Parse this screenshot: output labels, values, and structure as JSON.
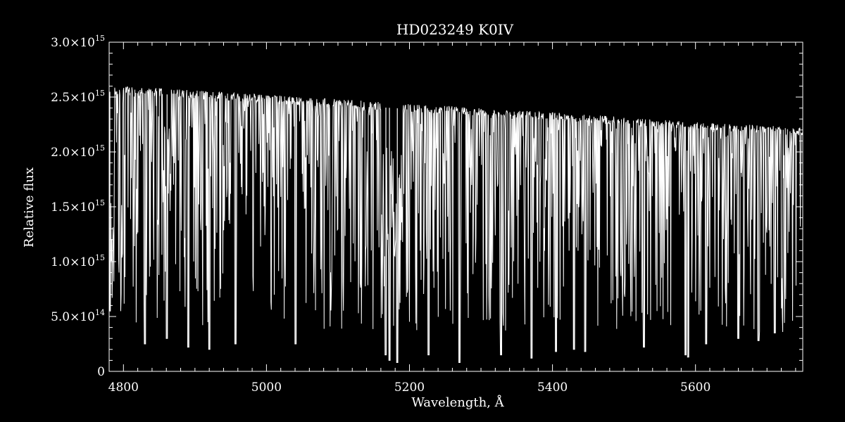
{
  "chart_data": {
    "type": "line",
    "title": "HD023249   K0IV",
    "xlabel": "Wavelength, Å",
    "ylabel": "Relative flux",
    "xlim": [
      4780,
      5750
    ],
    "ylim": [
      0,
      3000000000000000.0
    ],
    "grid": false,
    "legend": "none",
    "x_ticks": [
      4800,
      5000,
      5200,
      5400,
      5600
    ],
    "x_tick_labels": [
      "4800",
      "5000",
      "5200",
      "5400",
      "5600"
    ],
    "y_ticks": [
      {
        "value": 0,
        "mantissa": "0",
        "exponent": ""
      },
      {
        "value": 500000000000000.0,
        "mantissa": "5.0×10",
        "exponent": "14"
      },
      {
        "value": 1000000000000000.0,
        "mantissa": "1.0×10",
        "exponent": "15"
      },
      {
        "value": 1500000000000000.0,
        "mantissa": "1.5×10",
        "exponent": "15"
      },
      {
        "value": 2000000000000000.0,
        "mantissa": "2.0×10",
        "exponent": "15"
      },
      {
        "value": 2500000000000000.0,
        "mantissa": "2.5×10",
        "exponent": "15"
      },
      {
        "value": 3000000000000000.0,
        "mantissa": "3.0×10",
        "exponent": "15"
      }
    ],
    "series": [
      {
        "continuum": {
          "x": [
            4780,
            4850,
            4900,
            5000,
            5100,
            5200,
            5300,
            5400,
            5500,
            5600,
            5700,
            5750
          ],
          "y": [
            2600000000000000.0,
            2580000000000000.0,
            2560000000000000.0,
            2520000000000000.0,
            2480000000000000.0,
            2440000000000000.0,
            2400000000000000.0,
            2360000000000000.0,
            2320000000000000.0,
            2270000000000000.0,
            2240000000000000.0,
            2220000000000000.0
          ]
        },
        "strong_lines": [
          {
            "x": 4781,
            "y": 550000000000000.0
          },
          {
            "x": 4830,
            "y": 250000000000000.0
          },
          {
            "x": 4861,
            "y": 300000000000000.0
          },
          {
            "x": 4891,
            "y": 220000000000000.0
          },
          {
            "x": 4920,
            "y": 200000000000000.0
          },
          {
            "x": 4957,
            "y": 250000000000000.0
          },
          {
            "x": 5041,
            "y": 250000000000000.0
          },
          {
            "x": 5167,
            "y": 150000000000000.0
          },
          {
            "x": 5172,
            "y": 100000000000000.0
          },
          {
            "x": 5183,
            "y": 80000000000000.0
          },
          {
            "x": 5227,
            "y": 150000000000000.0
          },
          {
            "x": 5270,
            "y": 80000000000000.0
          },
          {
            "x": 5328,
            "y": 150000000000000.0
          },
          {
            "x": 5371,
            "y": 120000000000000.0
          },
          {
            "x": 5405,
            "y": 180000000000000.0
          },
          {
            "x": 5430,
            "y": 200000000000000.0
          },
          {
            "x": 5446,
            "y": 180000000000000.0
          },
          {
            "x": 5528,
            "y": 220000000000000.0
          },
          {
            "x": 5586,
            "y": 150000000000000.0
          },
          {
            "x": 5590,
            "y": 130000000000000.0
          },
          {
            "x": 5615,
            "y": 250000000000000.0
          },
          {
            "x": 5660,
            "y": 300000000000000.0
          },
          {
            "x": 5688,
            "y": 280000000000000.0
          },
          {
            "x": 5711,
            "y": 350000000000000.0
          }
        ]
      }
    ]
  }
}
